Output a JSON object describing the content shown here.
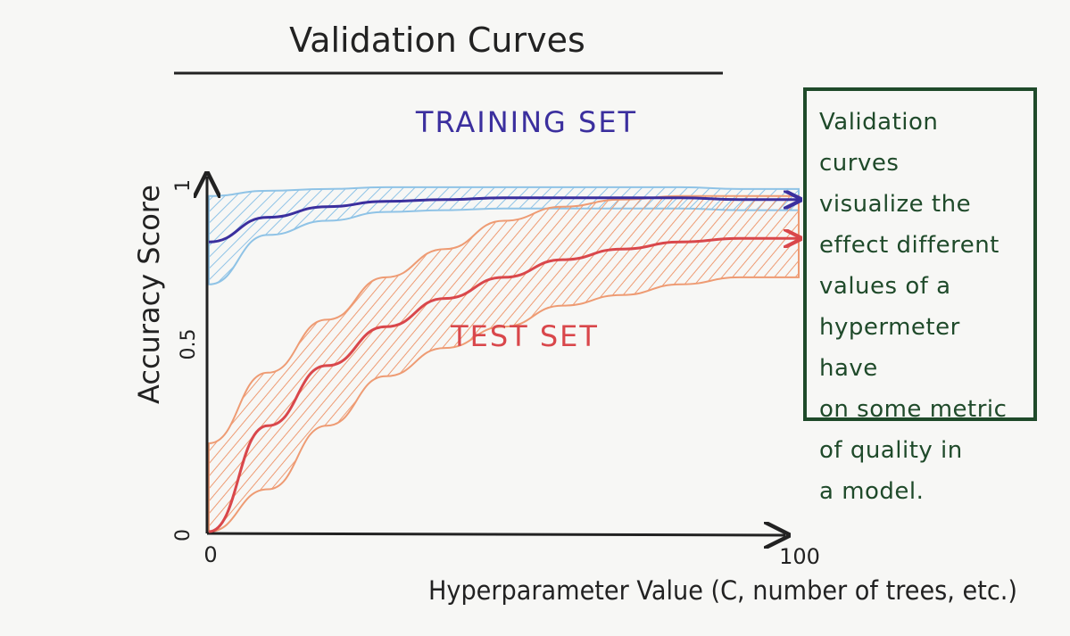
{
  "chart_data": {
    "type": "line",
    "title": "Validation Curves",
    "xlabel": "Hyperparameter Value (C, number of trees, etc.)",
    "ylabel": "Accuracy Score",
    "xlim": [
      0,
      100
    ],
    "ylim": [
      0,
      1
    ],
    "x_ticks": [
      "0",
      "100"
    ],
    "y_ticks": [
      "0",
      "0.5",
      "1"
    ],
    "x": [
      0,
      10,
      20,
      30,
      40,
      50,
      60,
      70,
      80,
      90,
      100
    ],
    "series": [
      {
        "name": "TRAINING SET",
        "color": "#3b2f9e",
        "band_color": "#8fc3e6",
        "values": [
          0.82,
          0.89,
          0.92,
          0.935,
          0.94,
          0.945,
          0.945,
          0.945,
          0.945,
          0.94,
          0.94
        ],
        "upper": [
          0.95,
          0.965,
          0.97,
          0.975,
          0.975,
          0.975,
          0.975,
          0.975,
          0.975,
          0.97,
          0.97
        ],
        "lower": [
          0.7,
          0.84,
          0.88,
          0.905,
          0.91,
          0.915,
          0.915,
          0.915,
          0.915,
          0.91,
          0.91
        ]
      },
      {
        "name": "TEST SET",
        "color": "#d9474b",
        "band_color": "#ee9b73",
        "values": [
          0.0,
          0.3,
          0.47,
          0.58,
          0.66,
          0.72,
          0.77,
          0.8,
          0.82,
          0.83,
          0.83
        ],
        "upper": [
          0.25,
          0.45,
          0.6,
          0.72,
          0.8,
          0.88,
          0.92,
          0.94,
          0.95,
          0.95,
          0.95
        ],
        "lower": [
          0.0,
          0.12,
          0.3,
          0.44,
          0.52,
          0.58,
          0.64,
          0.67,
          0.7,
          0.72,
          0.72
        ]
      }
    ],
    "annotation": {
      "lines": [
        "Validation curves",
        "visualize the",
        "effect different",
        "values of a",
        "hypermeter have",
        "on some metric",
        "of quality in",
        "a model."
      ],
      "border_color": "#1f4a2a"
    }
  }
}
